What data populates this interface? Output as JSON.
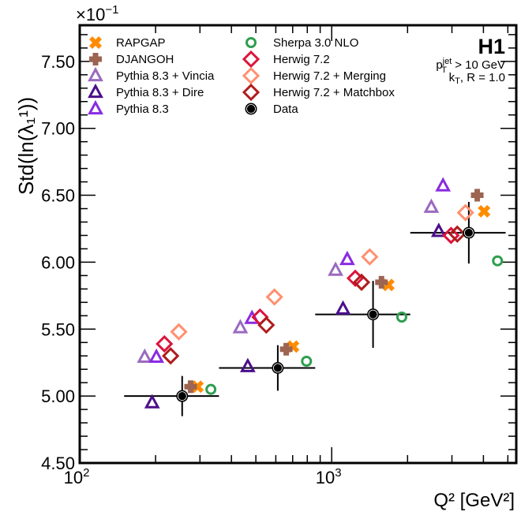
{
  "chart_data": {
    "type": "scatter",
    "title": "",
    "xlabel": "Q² [GeV²]",
    "ylabel": "Std(ln(λ₁¹))",
    "y_multiplier_label": "×10",
    "y_multiplier_exponent": "−1",
    "xscale": "log",
    "xlim": [
      100,
      5400
    ],
    "ylim": [
      4.5,
      7.77
    ],
    "x_ticks": [
      {
        "value": 100,
        "base": "10",
        "exp": "2"
      },
      {
        "value": 1000,
        "base": "10",
        "exp": "3"
      }
    ],
    "y_ticks": [
      4.5,
      5.0,
      5.5,
      6.0,
      6.5,
      7.0,
      7.5
    ],
    "y_tick_labels": [
      "4.50",
      "5.00",
      "5.50",
      "6.00",
      "6.50",
      "7.00",
      "7.50"
    ],
    "grid": false,
    "legend_position": "top-left",
    "annotations": {
      "experiment": "H1",
      "cut_line_1_main": "p",
      "cut_line_1_sup": "jet",
      "cut_line_1_sub": "T",
      "cut_line_1_rest": " > 10 GeV",
      "cut_line_2_main": "k",
      "cut_line_2_sub": "T",
      "cut_line_2_rest": ", R = 1.0"
    },
    "bins": [
      {
        "low": 150,
        "high": 357,
        "center": 255
      },
      {
        "low": 357,
        "high": 860,
        "center": 611
      },
      {
        "low": 860,
        "high": 2050,
        "center": 1459
      },
      {
        "low": 2050,
        "high": 4900,
        "center": 3500
      }
    ],
    "data": {
      "name": "Data",
      "values": [
        5.0,
        5.21,
        5.61,
        6.22
      ],
      "errors": [
        0.15,
        0.17,
        0.25,
        0.23
      ]
    },
    "series": [
      {
        "name": "RAPGAP",
        "marker": "cross-x",
        "color": "#ff8c00",
        "x_offset": 1.15,
        "values": [
          5.07,
          5.37,
          5.83,
          6.38
        ]
      },
      {
        "name": "DJANGOH",
        "marker": "plus",
        "color": "#9c6451",
        "x_offset": 1.08,
        "values": [
          5.07,
          5.35,
          5.85,
          6.5
        ]
      },
      {
        "name": "Pythia 8.3 + Vincia",
        "marker": "triangle",
        "color": "#9a6ac0",
        "x_offset": 0.71,
        "values": [
          5.29,
          5.51,
          5.94,
          6.41
        ]
      },
      {
        "name": "Pythia 8.3 + Dire",
        "marker": "triangle",
        "color": "#4b0f8a",
        "x_offset": 0.76,
        "values": [
          4.95,
          5.22,
          5.65,
          6.23
        ]
      },
      {
        "name": "Pythia 8.3",
        "marker": "triangle",
        "color": "#8a2be2",
        "x_offset": 0.79,
        "values": [
          5.29,
          5.58,
          6.02,
          6.57
        ]
      },
      {
        "name": "Sherpa 3.0 NLO",
        "marker": "circle",
        "color": "#2e9e4f",
        "x_offset": 1.3,
        "values": [
          5.05,
          5.26,
          5.59,
          6.01
        ]
      },
      {
        "name": "Herwig 7.2",
        "marker": "diamond",
        "color": "#dc143c",
        "x_offset": 0.85,
        "values": [
          5.39,
          5.59,
          5.88,
          6.2
        ]
      },
      {
        "name": "Herwig 7.2 + Merging",
        "marker": "diamond",
        "color": "#ff9070",
        "x_offset": 0.97,
        "values": [
          5.48,
          5.74,
          6.04,
          6.37
        ]
      },
      {
        "name": "Herwig 7.2 + Matchbox",
        "marker": "diamond",
        "color": "#b01c1c",
        "x_offset": 0.9,
        "values": [
          5.3,
          5.53,
          5.85,
          6.21
        ]
      }
    ],
    "legend": [
      {
        "name": "RAPGAP",
        "marker": "cross-x",
        "color": "#ff8c00"
      },
      {
        "name": "DJANGOH",
        "marker": "plus",
        "color": "#9c6451"
      },
      {
        "name": "Pythia 8.3 + Vincia",
        "marker": "triangle",
        "color": "#9a6ac0"
      },
      {
        "name": "Pythia 8.3 + Dire",
        "marker": "triangle",
        "color": "#4b0f8a"
      },
      {
        "name": "Pythia 8.3",
        "marker": "triangle",
        "color": "#8a2be2"
      },
      {
        "name": "Sherpa 3.0 NLO",
        "marker": "circle",
        "color": "#2e9e4f"
      },
      {
        "name": "Herwig 7.2",
        "marker": "diamond",
        "color": "#dc143c"
      },
      {
        "name": "Herwig 7.2 + Merging",
        "marker": "diamond",
        "color": "#ff9070"
      },
      {
        "name": "Herwig 7.2 + Matchbox",
        "marker": "diamond",
        "color": "#b01c1c"
      },
      {
        "name": "Data",
        "marker": "data",
        "color": "#000000"
      }
    ]
  }
}
